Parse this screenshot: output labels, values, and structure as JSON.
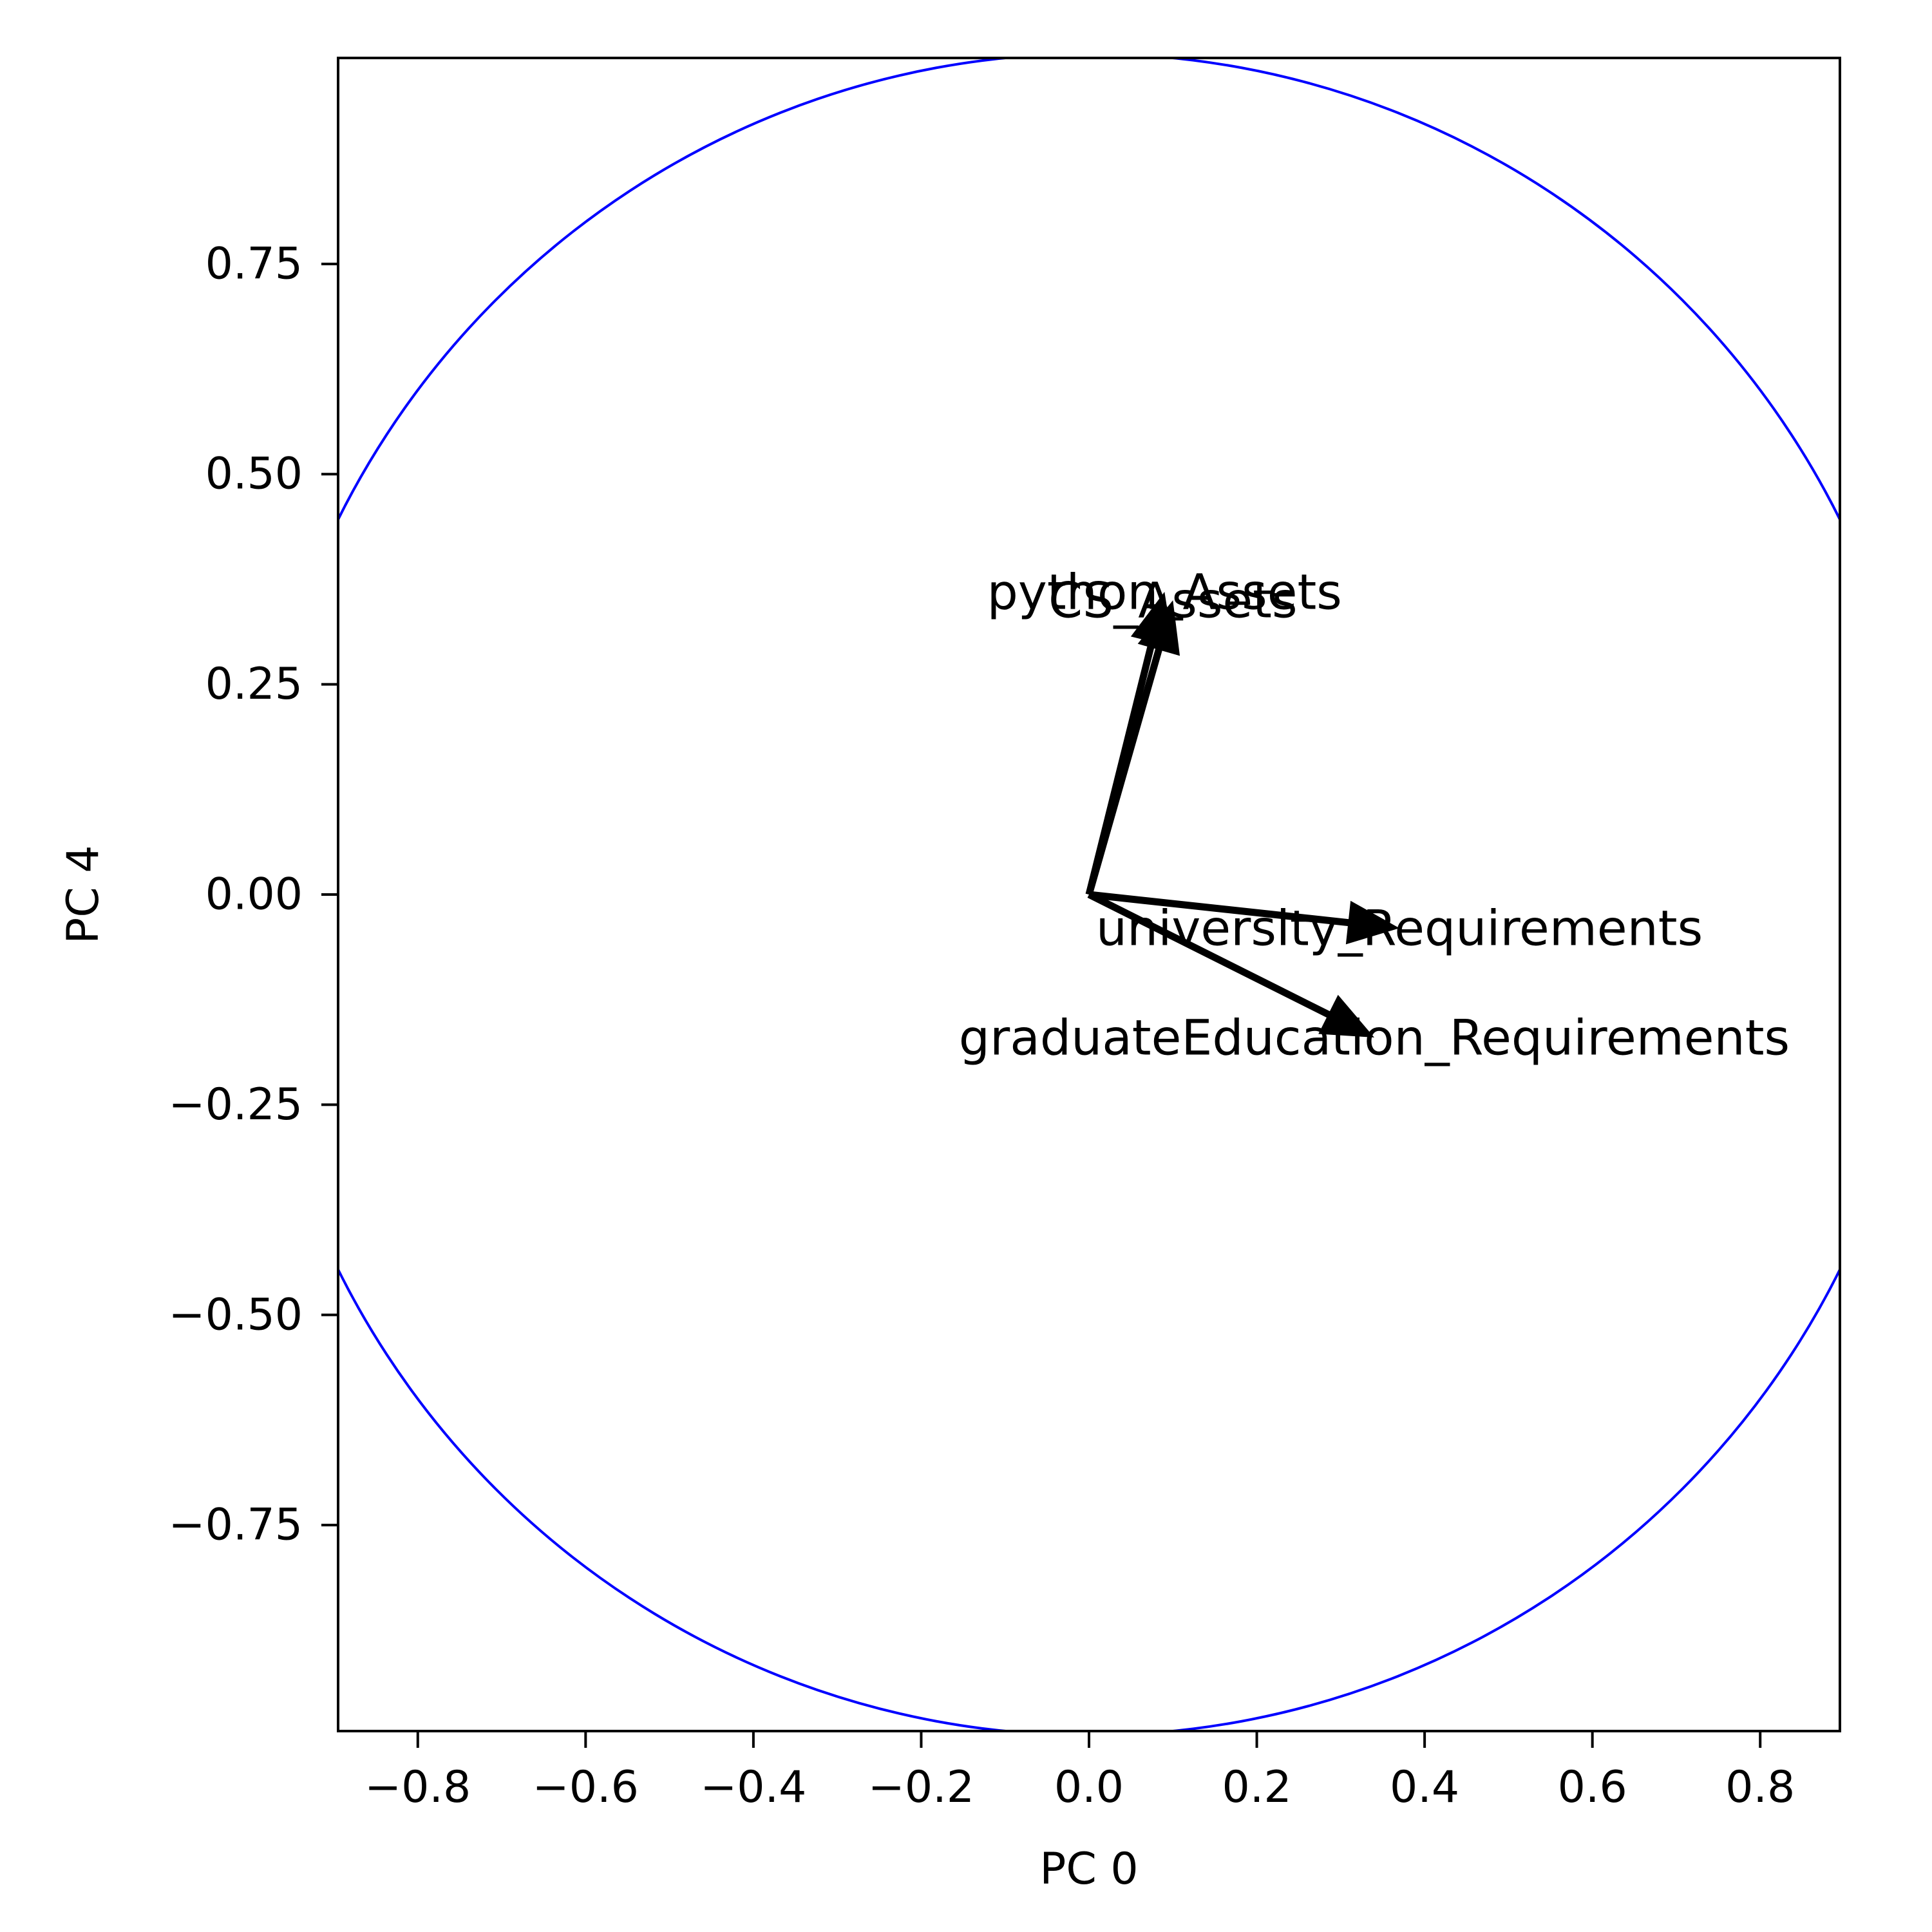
{
  "chart_data": {
    "type": "biplot",
    "xlabel": "PC 0",
    "ylabel": "PC 4",
    "xlim": [
      -0.895,
      0.895
    ],
    "ylim": [
      -0.995,
      0.995
    ],
    "xticks": [
      {
        "value": -0.8,
        "label": "−0.8"
      },
      {
        "value": -0.6,
        "label": "−0.6"
      },
      {
        "value": -0.4,
        "label": "−0.4"
      },
      {
        "value": -0.2,
        "label": "−0.2"
      },
      {
        "value": 0.0,
        "label": "0.0"
      },
      {
        "value": 0.2,
        "label": "0.2"
      },
      {
        "value": 0.4,
        "label": "0.4"
      },
      {
        "value": 0.6,
        "label": "0.6"
      },
      {
        "value": 0.8,
        "label": "0.8"
      }
    ],
    "yticks": [
      {
        "value": 0.75,
        "label": "0.75"
      },
      {
        "value": 0.5,
        "label": "0.50"
      },
      {
        "value": 0.25,
        "label": "0.25"
      },
      {
        "value": 0.0,
        "label": "0.00"
      },
      {
        "value": -0.25,
        "label": "−0.25"
      },
      {
        "value": -0.5,
        "label": "−0.50"
      },
      {
        "value": -0.75,
        "label": "−0.75"
      }
    ],
    "circle": {
      "center": [
        0,
        0
      ],
      "radius": 1.0,
      "color": "#0000ff"
    },
    "vectors": [
      {
        "name": "python_Assets",
        "x": 0.09,
        "y": 0.36
      },
      {
        "name": "CS_Assets",
        "x": 0.1,
        "y": 0.35
      },
      {
        "name": "university_Requirements",
        "x": 0.37,
        "y": -0.04
      },
      {
        "name": "graduateEducation_Requirements",
        "x": 0.34,
        "y": -0.17
      }
    ],
    "vector_color": "#000000"
  }
}
